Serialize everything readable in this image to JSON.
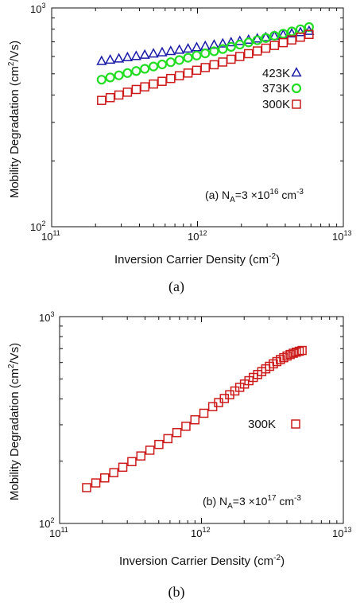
{
  "chart_data": [
    {
      "type": "scatter",
      "panel_label": "(a)",
      "xlabel": "Inversion Carrier Density (cm",
      "xlabel_sup": "-2",
      "xlabel_end": ")",
      "ylabel": "Mobility Degradation (cm",
      "ylabel_sup": "2",
      "ylabel_end": "/Vs)",
      "xscale": "log",
      "yscale": "log",
      "xlim": [
        100000000000.0,
        10000000000000.0
      ],
      "ylim": [
        100,
        1000
      ],
      "xticks": [
        {
          "base": "10",
          "exp": "11"
        },
        {
          "base": "10",
          "exp": "12"
        },
        {
          "base": "10",
          "exp": "13"
        }
      ],
      "yticks": [
        {
          "base": "10",
          "exp": "2"
        },
        {
          "base": "10",
          "exp": "3"
        }
      ],
      "annotation": {
        "pre": "(a) N",
        "sub": "A",
        "mid": "=3 ×10",
        "sup": "16",
        "post": " cm",
        "sup2": "-3"
      },
      "legend_position": "right, upper-middle",
      "series": [
        {
          "name": "423K",
          "marker": "triangle",
          "color": "#1a1aa8",
          "x": [
            220000000000.0,
            252000000000.0,
            289000000000.0,
            331000000000.0,
            380000000000.0,
            435000000000.0,
            499000000000.0,
            572000000000.0,
            655000000000.0,
            751000000000.0,
            861000000000.0,
            987000000000.0,
            1130000000000.0,
            1300000000000.0,
            1490000000000.0,
            1700000000000.0,
            1950000000000.0,
            2240000000000.0,
            2570000000000.0,
            2940000000000.0,
            3370000000000.0,
            3870000000000.0,
            4430000000000.0,
            5080000000000.0,
            5820000000000.0
          ],
          "y": [
            573,
            581,
            588,
            596,
            604,
            612,
            620,
            628,
            636,
            645,
            653,
            662,
            671,
            680,
            689,
            698,
            707,
            717,
            726,
            736,
            746,
            756,
            766,
            776,
            787
          ]
        },
        {
          "name": "373K",
          "marker": "circle",
          "color": "#22dd22",
          "x": [
            220000000000.0,
            252000000000.0,
            289000000000.0,
            331000000000.0,
            380000000000.0,
            435000000000.0,
            499000000000.0,
            572000000000.0,
            655000000000.0,
            751000000000.0,
            861000000000.0,
            987000000000.0,
            1130000000000.0,
            1300000000000.0,
            1490000000000.0,
            1700000000000.0,
            1950000000000.0,
            2240000000000.0,
            2570000000000.0,
            2940000000000.0,
            3370000000000.0,
            3870000000000.0,
            4430000000000.0,
            5080000000000.0,
            5820000000000.0
          ],
          "y": [
            470,
            481,
            492,
            504,
            515,
            527,
            540,
            552,
            565,
            578,
            592,
            606,
            620,
            634,
            649,
            664,
            680,
            696,
            712,
            729,
            746,
            763,
            781,
            799,
            818
          ]
        },
        {
          "name": "300K",
          "marker": "square",
          "color": "#cc1a1a",
          "x": [
            220000000000.0,
            252000000000.0,
            289000000000.0,
            331000000000.0,
            380000000000.0,
            435000000000.0,
            499000000000.0,
            572000000000.0,
            655000000000.0,
            751000000000.0,
            861000000000.0,
            987000000000.0,
            1130000000000.0,
            1300000000000.0,
            1490000000000.0,
            1700000000000.0,
            1950000000000.0,
            2240000000000.0,
            2570000000000.0,
            2940000000000.0,
            3370000000000.0,
            3870000000000.0,
            4430000000000.0,
            5080000000000.0,
            5820000000000.0
          ],
          "y": [
            378,
            389,
            400,
            412,
            424,
            436,
            449,
            462,
            476,
            490,
            504,
            519,
            534,
            550,
            566,
            583,
            600,
            618,
            636,
            655,
            674,
            694,
            714,
            735,
            757
          ]
        }
      ]
    },
    {
      "type": "scatter",
      "panel_label": "(b)",
      "xlabel": "Inversion Carrier Density (cm",
      "xlabel_sup": "-2",
      "xlabel_end": ")",
      "ylabel": "Mobility Degradation (cm",
      "ylabel_sup": "2",
      "ylabel_end": "/Vs)",
      "xscale": "log",
      "yscale": "log",
      "xlim": [
        100000000000.0,
        10000000000000.0
      ],
      "ylim": [
        100,
        1000
      ],
      "xticks": [
        {
          "base": "10",
          "exp": "11"
        },
        {
          "base": "10",
          "exp": "12"
        },
        {
          "base": "10",
          "exp": "13"
        }
      ],
      "yticks": [
        {
          "base": "10",
          "exp": "2"
        },
        {
          "base": "10",
          "exp": "3"
        }
      ],
      "annotation": {
        "pre": "(b) N",
        "sub": "A",
        "mid": "=3 ×10",
        "sup": "17",
        "post": " cm",
        "sup2": "-3"
      },
      "legend_position": "right, middle",
      "series": [
        {
          "name": "300K",
          "marker": "square",
          "color": "#cc1a1a",
          "x": [
            155000000000.0,
            180000000000.0,
            208000000000.0,
            241000000000.0,
            279000000000.0,
            323000000000.0,
            374000000000.0,
            433000000000.0,
            501000000000.0,
            580000000000.0,
            671000000000.0,
            777000000000.0,
            899000000000.0,
            1040000000000.0,
            1200000000000.0,
            1320000000000.0,
            1450000000000.0,
            1580000000000.0,
            1720000000000.0,
            1860000000000.0,
            2010000000000.0,
            2160000000000.0,
            2320000000000.0,
            2490000000000.0,
            2660000000000.0,
            2840000000000.0,
            3020000000000.0,
            3210000000000.0,
            3400000000000.0,
            3600000000000.0,
            3800000000000.0,
            4010000000000.0,
            4220000000000.0,
            4440000000000.0,
            4660000000000.0,
            4890000000000.0,
            5120000000000.0
          ],
          "y": [
            149,
            157,
            166,
            176,
            187,
            199,
            212,
            226,
            241,
            257,
            275,
            295,
            317,
            341,
            367,
            384,
            402,
            419,
            437,
            455,
            472,
            490,
            508,
            525,
            542,
            559,
            575,
            591,
            606,
            620,
            633,
            645,
            656,
            665,
            673,
            680,
            686
          ]
        }
      ]
    }
  ],
  "captions": [
    "(a)",
    "(b)"
  ]
}
